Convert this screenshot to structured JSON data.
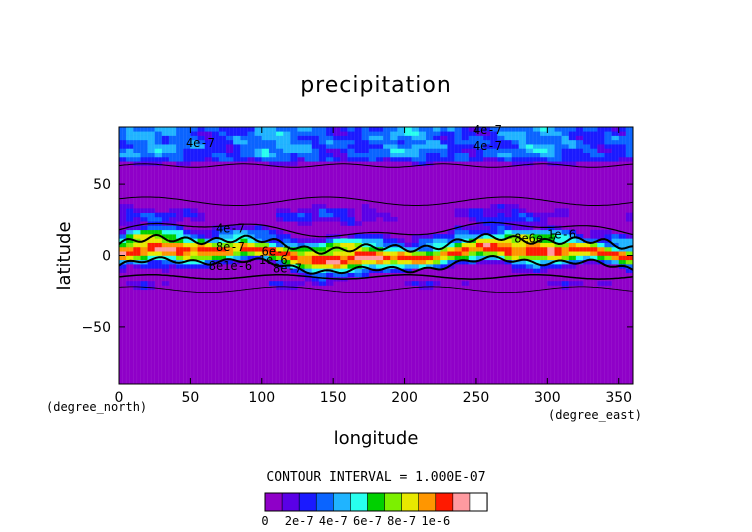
{
  "chart_data": {
    "type": "heatmap",
    "title": "precipitation",
    "xlabel": "longitude",
    "ylabel": "latitude",
    "x_unit": "(degree_east)",
    "y_unit": "(degree_north)",
    "xlim": [
      0,
      360
    ],
    "ylim": [
      -90,
      90
    ],
    "x_ticks": [
      0,
      50,
      100,
      150,
      200,
      250,
      300,
      350
    ],
    "y_ticks": [
      -50,
      0,
      50
    ],
    "contour_interval_label": "CONTOUR INTERVAL = 1.000E-07",
    "colorbar": {
      "colors": [
        "#8f00c8",
        "#5a00e6",
        "#1a1aff",
        "#0a64ff",
        "#20b4ff",
        "#28ffee",
        "#00d000",
        "#7cf000",
        "#e8e800",
        "#ff9600",
        "#ff1a00",
        "#ff9aa0"
      ],
      "tick_labels": [
        "0",
        "2e-7",
        "4e-7",
        "6e-7",
        "8e-7",
        "1e-6"
      ],
      "tick_values": [
        0,
        2e-07,
        4e-07,
        6e-07,
        8e-07,
        1e-06
      ],
      "over_color": "#ffffff"
    },
    "contour_labels": [
      {
        "text": "4e-7",
        "lon": 258,
        "lat": 85
      },
      {
        "text": "4e-7",
        "lon": 57,
        "lat": 76
      },
      {
        "text": "4e-7",
        "lon": 258,
        "lat": 74
      },
      {
        "text": "4e-7",
        "lon": 78,
        "lat": 16
      },
      {
        "text": "8e-7",
        "lon": 78,
        "lat": 3
      },
      {
        "text": "8e1e-6",
        "lon": 78,
        "lat": -10
      },
      {
        "text": "6e-7",
        "lon": 110,
        "lat": 0
      },
      {
        "text": "1e-6",
        "lon": 108,
        "lat": -6
      },
      {
        "text": "8e-7",
        "lon": 118,
        "lat": -12
      },
      {
        "text": "8e6e-7",
        "lon": 292,
        "lat": 9
      },
      {
        "text": "1e-6",
        "lon": 310,
        "lat": 12
      }
    ],
    "series": [
      {
        "band": "arctic",
        "lat_range": [
          62,
          90
        ],
        "level": 4e-07
      },
      {
        "band": "subtropical_north",
        "lat_range": [
          20,
          38
        ],
        "level": 1.5e-07
      },
      {
        "band": "itcz",
        "lat_range": [
          -15,
          18
        ],
        "level": 1e-06
      },
      {
        "band": "south_edge",
        "lat_range": [
          -25,
          -15
        ],
        "level": 2e-07
      },
      {
        "band": "background",
        "lat_range": [
          -90,
          90
        ],
        "level": 0
      }
    ]
  }
}
